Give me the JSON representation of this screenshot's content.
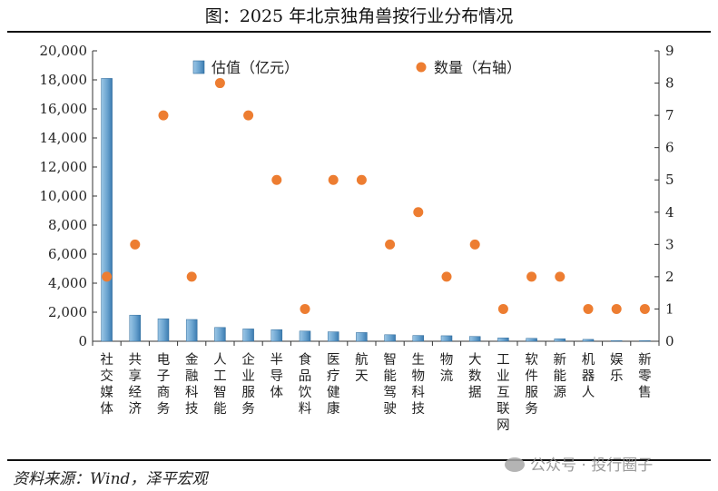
{
  "header": {
    "title": "图：2025 年北京独角兽按行业分布情况"
  },
  "footer": {
    "source": "资料来源：Wind，泽平宏观",
    "watermark": "公众号 · 投行圈子"
  },
  "legend": {
    "bar_label": "估值（亿元）",
    "dot_label": "数量（右轴）"
  },
  "colors": {
    "bar_light": "#9cc7e6",
    "bar_dark": "#3b7bb0",
    "dot": "#ed7d31",
    "axis": "#333333"
  },
  "chart_data": {
    "type": "bar",
    "categories": [
      "社交媒体",
      "共享经济",
      "电子商务",
      "金融科技",
      "人工智能",
      "企业服务",
      "半导体",
      "食品饮料",
      "医疗健康",
      "航天",
      "智能驾驶",
      "生物科技",
      "物流",
      "大数据",
      "工业互联网",
      "软件服务",
      "新能源",
      "机器人",
      "娱乐",
      "新零售"
    ],
    "series": [
      {
        "name": "估值（亿元）",
        "type": "bar",
        "axis": "left",
        "values": [
          18100,
          1800,
          1550,
          1500,
          950,
          850,
          800,
          700,
          650,
          600,
          450,
          400,
          380,
          330,
          230,
          200,
          170,
          130,
          40,
          40
        ]
      },
      {
        "name": "数量（右轴）",
        "type": "scatter",
        "axis": "right",
        "values": [
          2,
          3,
          7,
          2,
          8,
          7,
          5,
          1,
          5,
          5,
          3,
          4,
          2,
          3,
          1,
          2,
          2,
          1,
          1,
          1
        ]
      }
    ],
    "ylim": [
      0,
      20000
    ],
    "yticks": [
      "0",
      "2,000",
      "4,000",
      "6,000",
      "8,000",
      "10,000",
      "12,000",
      "14,000",
      "16,000",
      "18,000",
      "20,000"
    ],
    "y2lim": [
      0,
      9
    ],
    "y2ticks": [
      "0",
      "1",
      "2",
      "3",
      "4",
      "5",
      "6",
      "7",
      "8",
      "9"
    ],
    "grid": false,
    "legend_position": "top"
  }
}
